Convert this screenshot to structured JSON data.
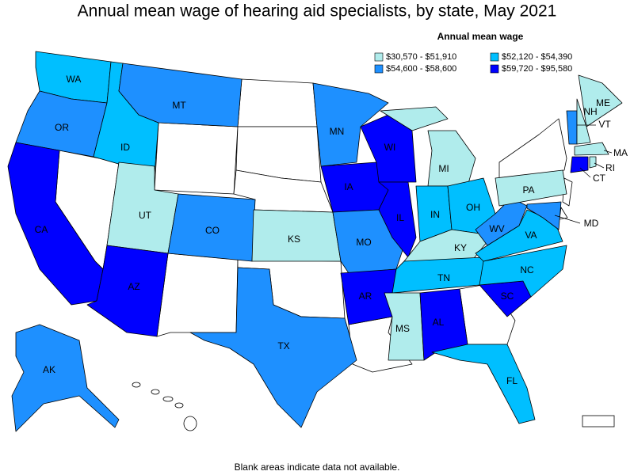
{
  "title": "Annual mean wage of hearing aid specialists, by state, May 2021",
  "legend": {
    "title": "Annual mean wage",
    "items": [
      {
        "label": "$30,570 - $51,910",
        "color": "#b0ecec"
      },
      {
        "label": "$52,120 - $54,390",
        "color": "#00bfff"
      },
      {
        "label": "$54,600 - $58,600",
        "color": "#1e90ff"
      },
      {
        "label": "$59,720 - $95,580",
        "color": "#0000ff"
      }
    ]
  },
  "states": [
    {
      "label": "WA",
      "range": 1
    },
    {
      "label": "OR",
      "range": 2
    },
    {
      "label": "CA",
      "range": 3
    },
    {
      "label": "ID",
      "range": 1
    },
    {
      "label": "MT",
      "range": 2
    },
    {
      "label": "UT",
      "range": 0
    },
    {
      "label": "AZ",
      "range": 3
    },
    {
      "label": "CO",
      "range": 2
    },
    {
      "label": "KS",
      "range": 0
    },
    {
      "label": "TX",
      "range": 2
    },
    {
      "label": "MN",
      "range": 2
    },
    {
      "label": "IA",
      "range": 3
    },
    {
      "label": "MO",
      "range": 2
    },
    {
      "label": "AR",
      "range": 3
    },
    {
      "label": "WI",
      "range": 3
    },
    {
      "label": "IL",
      "range": 3
    },
    {
      "label": "MI",
      "range": 0
    },
    {
      "label": "IN",
      "range": 1
    },
    {
      "label": "OH",
      "range": 1
    },
    {
      "label": "KY",
      "range": 0
    },
    {
      "label": "TN",
      "range": 1
    },
    {
      "label": "MS",
      "range": 0
    },
    {
      "label": "AL",
      "range": 3
    },
    {
      "label": "FL",
      "range": 1
    },
    {
      "label": "SC",
      "range": 3
    },
    {
      "label": "NC",
      "range": 1
    },
    {
      "label": "VA",
      "range": 1
    },
    {
      "label": "WV",
      "range": 2
    },
    {
      "label": "PA",
      "range": 0
    },
    {
      "label": "ME",
      "range": 0
    },
    {
      "label": "VT",
      "range": 2
    },
    {
      "label": "NH",
      "range": 0
    },
    {
      "label": "MA",
      "range": 0
    },
    {
      "label": "CT",
      "range": 3
    },
    {
      "label": "RI",
      "range": 0
    },
    {
      "label": "MD",
      "range": 2
    },
    {
      "label": "AK",
      "range": 2
    }
  ],
  "footnote": "Blank areas indicate data not available."
}
